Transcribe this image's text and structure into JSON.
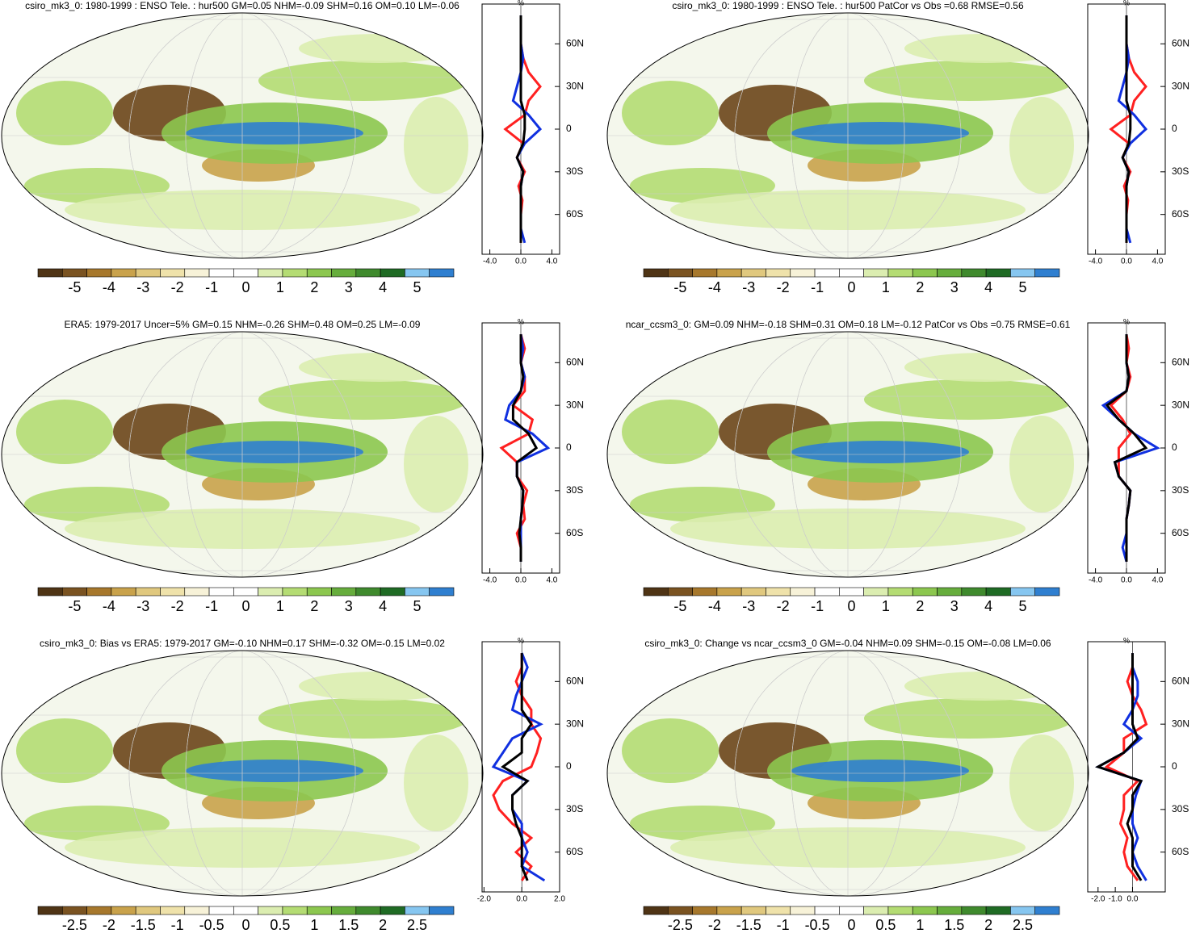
{
  "panels": [
    {
      "title": "csiro_mk3_0: 1980-1999 : ENSO Tele. : hur500 GM=0.05 NHM=-0.09 SHM=0.16 OM=0.10 LM=-0.06",
      "colorbar": {
        "ticks": [
          -5,
          -4,
          -3,
          -2,
          -1,
          0,
          1,
          2,
          3,
          4,
          5
        ]
      },
      "profile": {
        "unit": "%",
        "xlim": [
          -5,
          5
        ],
        "xticks": [
          {
            "value": -4,
            "label": "-4.0"
          },
          {
            "value": 0,
            "label": "0.0"
          },
          {
            "value": 4,
            "label": "4.0"
          }
        ],
        "ylim": [
          -88,
          88
        ],
        "yticks": [
          {
            "value": 60,
            "label": "60N"
          },
          {
            "value": 30,
            "label": "30N"
          },
          0,
          {
            "value": -30,
            "label": "30S"
          },
          {
            "value": -60,
            "label": "60S"
          }
        ],
        "x": [
          -80,
          -70,
          -60,
          -50,
          -40,
          -30,
          -20,
          -10,
          0,
          10,
          20,
          30,
          40,
          50,
          60,
          70,
          80
        ],
        "series": [
          {
            "color": "#ff2020",
            "values": [
              0,
              0,
              0,
              0.2,
              -0.3,
              0.5,
              -0.5,
              0.3,
              -2,
              0.5,
              1,
              2.5,
              1,
              0.3,
              0,
              0,
              0
            ]
          },
          {
            "color": "#1030e0",
            "values": [
              0.5,
              0,
              0,
              0,
              0,
              0.3,
              -0.5,
              0.5,
              2.5,
              1,
              -1,
              -0.5,
              0,
              0.3,
              0,
              0,
              0
            ]
          },
          {
            "color": "#000000",
            "values": [
              0,
              0,
              0,
              0,
              0,
              0.3,
              -0.5,
              0.3,
              0.5,
              0.5,
              0,
              0,
              0,
              0,
              0,
              0,
              0
            ]
          }
        ]
      }
    },
    {
      "title": "csiro_mk3_0: 1980-1999 : ENSO Tele. : hur500 PatCor vs Obs =0.68 RMSE=0.56",
      "colorbar": {
        "ticks": [
          -5,
          -4,
          -3,
          -2,
          -1,
          0,
          1,
          2,
          3,
          4,
          5
        ]
      },
      "profile": {
        "unit": "%",
        "xlim": [
          -5,
          5
        ],
        "xticks": [
          {
            "value": -4,
            "label": "-4.0"
          },
          {
            "value": 0,
            "label": "0.0"
          },
          {
            "value": 4,
            "label": "4.0"
          }
        ],
        "ylim": [
          -88,
          88
        ],
        "yticks": [
          {
            "value": 60,
            "label": "60N"
          },
          {
            "value": 30,
            "label": "30N"
          },
          0,
          {
            "value": -30,
            "label": "30S"
          },
          {
            "value": -60,
            "label": "60S"
          }
        ],
        "x": [
          -80,
          -70,
          -60,
          -50,
          -40,
          -30,
          -20,
          -10,
          0,
          10,
          20,
          30,
          40,
          50,
          60,
          70,
          80
        ],
        "series": [
          {
            "color": "#ff2020",
            "values": [
              0,
              0,
              0,
              0.2,
              -0.3,
              0.5,
              -0.5,
              0.3,
              -2,
              0.5,
              1,
              2.5,
              1,
              0.3,
              0,
              0,
              0
            ]
          },
          {
            "color": "#1030e0",
            "values": [
              0.5,
              0,
              0,
              0,
              0,
              0.3,
              -0.5,
              0.5,
              2.5,
              1,
              -1,
              -0.5,
              0,
              0.3,
              0,
              0,
              0
            ]
          },
          {
            "color": "#000000",
            "values": [
              0,
              0,
              0,
              0,
              0,
              0.3,
              -0.5,
              0.3,
              0.5,
              0.5,
              0,
              0,
              0,
              0,
              0,
              0,
              0
            ]
          }
        ]
      }
    },
    {
      "title": "ERA5: 1979-2017 Uncer=5% GM=0.15 NHM=-0.26 SHM=0.48 OM=0.25 LM=-0.09",
      "colorbar": {
        "ticks": [
          -5,
          -4,
          -3,
          -2,
          -1,
          0,
          1,
          2,
          3,
          4,
          5
        ]
      },
      "profile": {
        "unit": "%",
        "xlim": [
          -5,
          5
        ],
        "xticks": [
          {
            "value": -4,
            "label": "-4.0"
          },
          {
            "value": 0,
            "label": "0.0"
          },
          {
            "value": 4,
            "label": "4.0"
          }
        ],
        "ylim": [
          -88,
          88
        ],
        "yticks": [
          {
            "value": 60,
            "label": "60N"
          },
          {
            "value": 30,
            "label": "30N"
          },
          0,
          {
            "value": -30,
            "label": "30S"
          },
          {
            "value": -60,
            "label": "60S"
          }
        ],
        "x": [
          -80,
          -70,
          -60,
          -50,
          -40,
          -30,
          -20,
          -10,
          0,
          10,
          20,
          30,
          40,
          50,
          60,
          70,
          80
        ],
        "series": [
          {
            "color": "#ff2020",
            "values": [
              0,
              0,
              -0.5,
              0.5,
              0.3,
              0.8,
              -0.5,
              -0.5,
              -2.5,
              1,
              1.5,
              -1,
              0.5,
              0.5,
              0,
              0.5,
              0
            ]
          },
          {
            "color": "#1030e0",
            "values": [
              0,
              0,
              0,
              0,
              0.2,
              0.3,
              -0.5,
              -0.5,
              3.5,
              1.5,
              -2,
              -1.5,
              0,
              0.5,
              0,
              0.3,
              0
            ]
          },
          {
            "color": "#000000",
            "values": [
              0,
              0,
              -0.2,
              0,
              0.2,
              0.3,
              -0.5,
              -0.5,
              2,
              1,
              -1,
              -1,
              0,
              0.3,
              0,
              0,
              0
            ]
          }
        ]
      }
    },
    {
      "title": "ncar_ccsm3_0: GM=0.09 NHM=-0.18 SHM=0.31 OM=0.18 LM=-0.12 PatCor vs Obs =0.75 RMSE=0.61",
      "colorbar": {
        "ticks": [
          -5,
          -4,
          -3,
          -2,
          -1,
          0,
          1,
          2,
          3,
          4,
          5
        ]
      },
      "profile": {
        "unit": "%",
        "xlim": [
          -5,
          5
        ],
        "xticks": [
          {
            "value": -4,
            "label": "-4.0"
          },
          {
            "value": 0,
            "label": "0.0"
          },
          {
            "value": 4,
            "label": "4.0"
          }
        ],
        "ylim": [
          -88,
          88
        ],
        "yticks": [
          {
            "value": 60,
            "label": "60N"
          },
          {
            "value": 30,
            "label": "30N"
          },
          0,
          {
            "value": -30,
            "label": "30S"
          },
          {
            "value": -60,
            "label": "60S"
          }
        ],
        "x": [
          -80,
          -70,
          -60,
          -50,
          -40,
          -30,
          -20,
          -10,
          0,
          10,
          20,
          30,
          40,
          50,
          60,
          70,
          80
        ],
        "series": [
          {
            "color": "#ff2020",
            "values": [
              0,
              0,
              0,
              0,
              0.3,
              0.5,
              -1,
              -1,
              -1,
              0.5,
              -0.5,
              -2,
              0,
              0.5,
              0,
              0.3,
              0
            ]
          },
          {
            "color": "#1030e0",
            "values": [
              0,
              -0.5,
              0,
              0,
              0.3,
              0.5,
              -1,
              -1.5,
              4,
              1,
              -1,
              -3,
              0,
              0.3,
              0,
              0,
              0
            ]
          },
          {
            "color": "#000000",
            "values": [
              0,
              0,
              0,
              0,
              0.3,
              0.5,
              -1,
              -1.5,
              2.5,
              1,
              -1,
              -2.5,
              0,
              0.3,
              0,
              0,
              0
            ]
          }
        ]
      }
    },
    {
      "title": "csiro_mk3_0: Bias vs ERA5: 1979-2017 GM=-0.10 NHM=0.17 SHM=-0.32 OM=-0.15 LM=0.02",
      "colorbar": {
        "ticks": [
          -2.5,
          -2,
          -1.5,
          -1,
          -0.5,
          0,
          0.5,
          1,
          1.5,
          2,
          2.5
        ]
      },
      "profile": {
        "unit": "%",
        "xlim": [
          -2.1,
          2
        ],
        "xticks": [
          {
            "value": -2,
            "label": "-2.0"
          },
          {
            "value": 0,
            "label": "0.0"
          },
          {
            "value": 2,
            "label": "2.0"
          }
        ],
        "ylim": [
          -88,
          88
        ],
        "yticks": [
          {
            "value": 60,
            "label": "60N"
          },
          {
            "value": 30,
            "label": "30N"
          },
          0,
          {
            "value": -30,
            "label": "30S"
          },
          {
            "value": -60,
            "label": "60S"
          }
        ],
        "x": [
          -80,
          -70,
          -60,
          -50,
          -40,
          -30,
          -20,
          -10,
          0,
          10,
          20,
          30,
          40,
          50,
          60,
          70,
          80
        ],
        "series": [
          {
            "color": "#ff2020",
            "values": [
              0,
              0.5,
              -0.3,
              0.5,
              -0.5,
              -1.2,
              -1.5,
              -1,
              0.5,
              0.8,
              1,
              0.5,
              0.5,
              0,
              -0.3,
              0,
              0
            ]
          },
          {
            "color": "#1030e0",
            "values": [
              1.2,
              0,
              0.3,
              0,
              0,
              -0.5,
              -0.5,
              0.3,
              -1.5,
              -1,
              -0.5,
              1,
              -0.5,
              -0.3,
              0,
              0.3,
              0
            ]
          },
          {
            "color": "#000000",
            "values": [
              0.3,
              0,
              0,
              0,
              -0.3,
              -0.5,
              -0.5,
              0.3,
              -1,
              0,
              0,
              0.5,
              0,
              0,
              0,
              0,
              0
            ]
          }
        ]
      }
    },
    {
      "title": "csiro_mk3_0: Change vs ncar_ccsm3_0 GM=-0.04 NHM=0.09 SHM=-0.15 OM=-0.08 LM=0.06",
      "colorbar": {
        "ticks": [
          -2.5,
          -2,
          -1.5,
          -1,
          -0.5,
          0,
          0.5,
          1,
          1.5,
          2,
          2.5
        ]
      },
      "profile": {
        "unit": "%",
        "xlim": [
          -2.6,
          1.9
        ],
        "xticks": [
          {
            "value": -2,
            "label": "-2.0"
          },
          {
            "value": -1,
            "label": "-1.0"
          },
          {
            "value": 0,
            "label": "0.0"
          }
        ],
        "ylim": [
          -88,
          88
        ],
        "yticks": [
          {
            "value": 60,
            "label": "60N"
          },
          {
            "value": 30,
            "label": "30N"
          },
          0,
          {
            "value": -30,
            "label": "30S"
          },
          {
            "value": -60,
            "label": "60S"
          }
        ],
        "x": [
          -80,
          -70,
          -60,
          -50,
          -40,
          -30,
          -20,
          -10,
          0,
          10,
          20,
          30,
          40,
          50,
          60,
          70,
          80
        ],
        "series": [
          {
            "color": "#ff2020",
            "values": [
              0.3,
              -0.3,
              -0.5,
              -0.3,
              -0.7,
              -0.5,
              -0.5,
              0.3,
              -1.5,
              -0.5,
              -0.5,
              0.8,
              0.5,
              0,
              -0.3,
              0,
              0
            ]
          },
          {
            "color": "#1030e0",
            "values": [
              0.8,
              0.3,
              0,
              0.3,
              0,
              0,
              0.2,
              0.5,
              -2,
              -0.5,
              0.5,
              -0.5,
              0,
              0.3,
              0.3,
              0,
              0
            ]
          },
          {
            "color": "#000000",
            "values": [
              0.5,
              0,
              0,
              0,
              -0.3,
              0,
              0,
              0.5,
              -2,
              -0.5,
              0.3,
              0,
              0,
              0,
              0,
              0,
              0
            ]
          }
        ]
      }
    }
  ]
}
